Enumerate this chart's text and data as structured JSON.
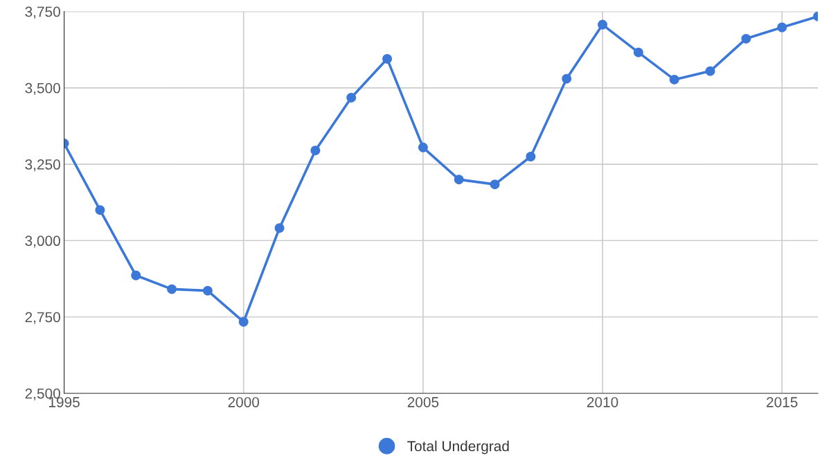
{
  "chart_data": {
    "type": "line",
    "x": [
      1995,
      1996,
      1997,
      1998,
      1999,
      2000,
      2001,
      2002,
      2003,
      2004,
      2005,
      2006,
      2007,
      2008,
      2009,
      2010,
      2011,
      2012,
      2013,
      2014,
      2015,
      2016
    ],
    "series": [
      {
        "name": "Total Undergrad",
        "color": "#3c78d8",
        "values": [
          3318,
          3100,
          2886,
          2841,
          2836,
          2734,
          3041,
          3295,
          3468,
          3595,
          3305,
          3200,
          3184,
          3275,
          3530,
          3707,
          3616,
          3527,
          3555,
          3661,
          3698,
          3734
        ]
      }
    ],
    "xlim": [
      1995,
      2016
    ],
    "xticks": [
      1995,
      2000,
      2005,
      2010,
      2015
    ],
    "ylim": [
      2500,
      3750
    ],
    "yticks": [
      {
        "value": 2500,
        "label": "2,500"
      },
      {
        "value": 2750,
        "label": "2,750"
      },
      {
        "value": 3000,
        "label": "3,000"
      },
      {
        "value": 3250,
        "label": "3,250"
      },
      {
        "value": 3500,
        "label": "3,500"
      },
      {
        "value": 3750,
        "label": "3,750"
      }
    ],
    "grid": true,
    "legend": "bottom",
    "marker": "circle",
    "line_style": "solid"
  }
}
